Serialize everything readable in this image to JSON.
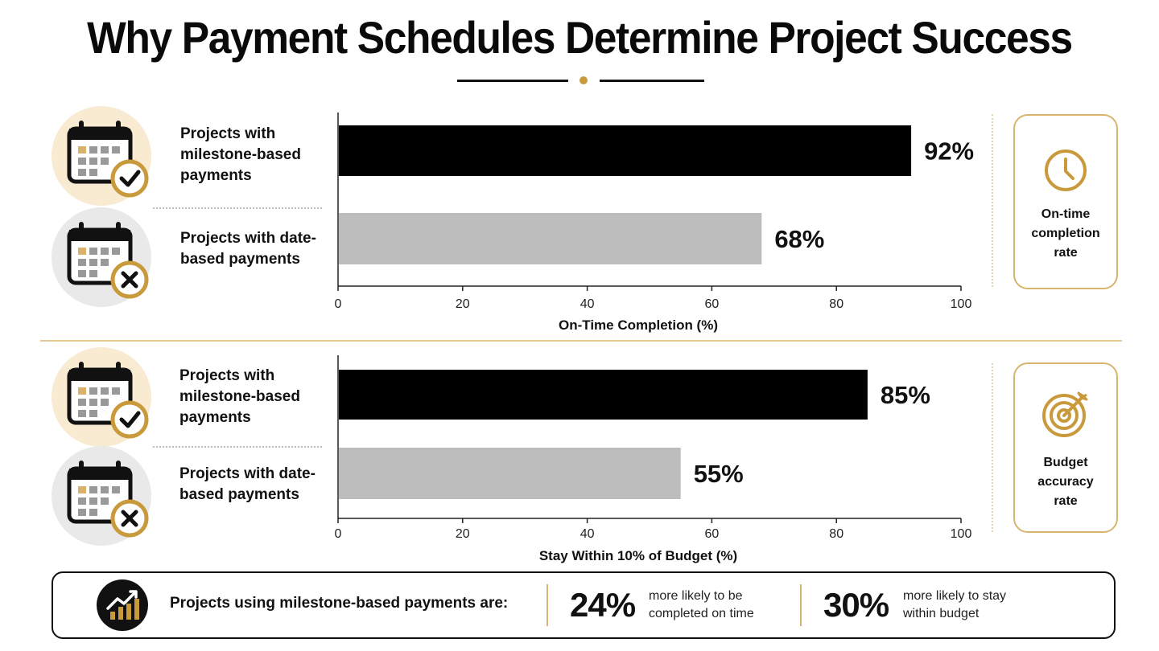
{
  "title": "Why Payment Schedules Determine Project Success",
  "colors": {
    "accent": "#c99a3b",
    "milestone_bar": "#000000",
    "date_bar": "#bdbdbd"
  },
  "chart_data": [
    {
      "type": "bar",
      "orientation": "horizontal",
      "categories": [
        "Projects with milestone-based payments",
        "Projects with date-based payments"
      ],
      "values": [
        92,
        68
      ],
      "value_labels": [
        "92%",
        "68%"
      ],
      "xlabel": "On-Time Completion (%)",
      "xlim": [
        0,
        100
      ],
      "xticks": [
        0,
        20,
        40,
        60,
        80,
        100
      ],
      "grid": false,
      "side_metric": {
        "label": "On-time completion rate",
        "icon": "clock-icon"
      }
    },
    {
      "type": "bar",
      "orientation": "horizontal",
      "categories": [
        "Projects with milestone-based payments",
        "Projects with date-based payments"
      ],
      "values": [
        85,
        55
      ],
      "value_labels": [
        "85%",
        "55%"
      ],
      "xlabel": "Stay Within 10% of Budget (%)",
      "xlim": [
        0,
        100
      ],
      "xticks": [
        0,
        20,
        40,
        60,
        80,
        100
      ],
      "grid": false,
      "side_metric": {
        "label": "Budget accuracy rate",
        "icon": "target-icon"
      }
    }
  ],
  "rows": {
    "milestone_label": "Projects with milestone-based payments",
    "date_label": "Projects with date-based payments",
    "milestone_icon": "calendar-check-icon",
    "date_icon": "calendar-x-icon"
  },
  "summary": {
    "icon": "growth-chart-icon",
    "lead": "Projects using milestone-based payments are:",
    "stat1_value": "24%",
    "stat1_text": "more likely to be completed on time",
    "stat2_value": "30%",
    "stat2_text": "more likely to stay within budget"
  }
}
